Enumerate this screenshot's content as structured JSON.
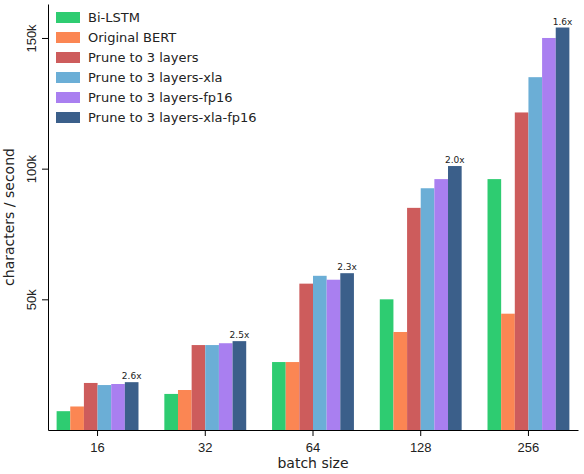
{
  "chart_data": {
    "type": "bar",
    "x_label": "batch size",
    "y_label": "characters / second",
    "categories": [
      "16",
      "32",
      "64",
      "128",
      "256"
    ],
    "series": [
      {
        "name": "Bi-LSTM",
        "color": "#2ecc71",
        "values": [
          7200,
          13800,
          26000,
          50000,
          96000
        ]
      },
      {
        "name": "Original BERT",
        "color": "#fb8653",
        "values": [
          9000,
          15300,
          26000,
          37500,
          44500
        ]
      },
      {
        "name": "Prune to 3 layers",
        "color": "#cd5c5c",
        "values": [
          18000,
          32500,
          56000,
          85000,
          121500
        ]
      },
      {
        "name": "Prune to 3 layers-xla",
        "color": "#6baed6",
        "values": [
          17200,
          32500,
          59000,
          92500,
          135000
        ]
      },
      {
        "name": "Prune to 3 layers-fp16",
        "color": "#a97ff0",
        "values": [
          17600,
          33200,
          57500,
          96000,
          150000
        ]
      },
      {
        "name": "Prune to 3 layers-xla-fp16",
        "color": "#3b5f8a",
        "values": [
          18300,
          34000,
          60000,
          101000,
          154000
        ]
      }
    ],
    "annotations": [
      {
        "text": "2.6x",
        "category": "16",
        "series": "Prune to 3 layers-xla-fp16"
      },
      {
        "text": "2.5x",
        "category": "32",
        "series": "Prune to 3 layers-xla-fp16"
      },
      {
        "text": "2.3x",
        "category": "64",
        "series": "Prune to 3 layers-xla-fp16"
      },
      {
        "text": "2.0x",
        "category": "128",
        "series": "Prune to 3 layers-xla-fp16"
      },
      {
        "text": "1.6x",
        "category": "256",
        "series": "Prune to 3 layers-xla-fp16"
      }
    ],
    "ylim": [
      0,
      163000
    ],
    "yticks": [
      {
        "value": 50000,
        "label": "50k"
      },
      {
        "value": 100000,
        "label": "100k"
      },
      {
        "value": 150000,
        "label": "150k"
      }
    ],
    "grid": false,
    "legend": "upper left"
  }
}
